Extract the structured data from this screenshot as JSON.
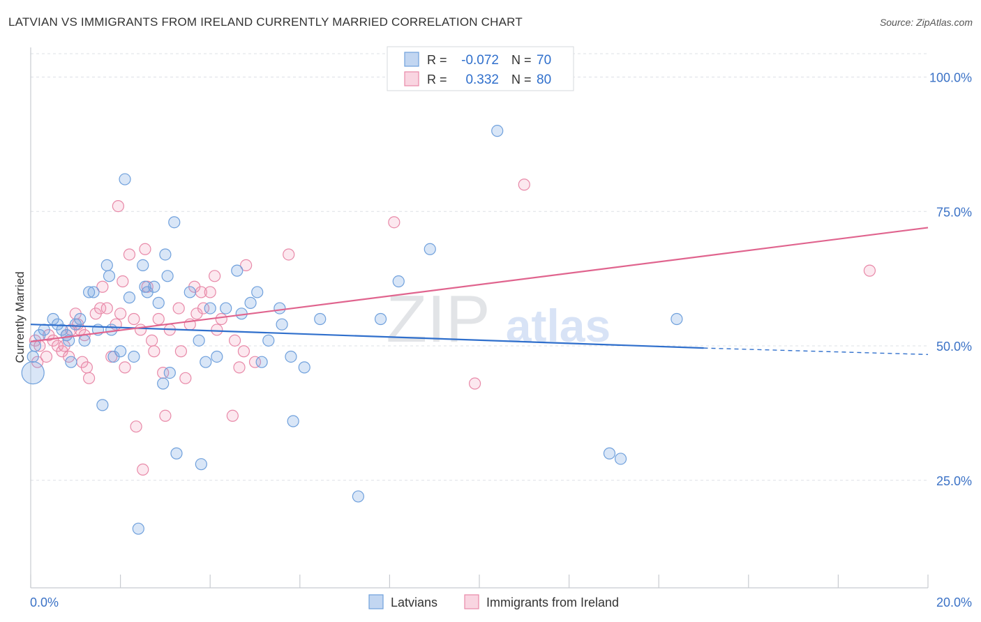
{
  "title": "LATVIAN VS IMMIGRANTS FROM IRELAND CURRENTLY MARRIED CORRELATION CHART",
  "source": "Source: ZipAtlas.com",
  "watermark": {
    "zip": "ZIP",
    "atlas": "atlas"
  },
  "colors": {
    "blue": "#6fa0dc",
    "blue_fill": "rgba(120,165,225,0.28)",
    "blue_line": "#2f6fcc",
    "pink": "#e889a8",
    "pink_fill": "rgba(240,150,180,0.22)",
    "pink_line": "#e0648e",
    "axis_text": "#3b72c6",
    "grid": "#dde0e6"
  },
  "stats": {
    "r_label": "R =",
    "n_label": "N =",
    "series": [
      {
        "r": "-0.072",
        "n": "70"
      },
      {
        "r": "0.332",
        "n": "80"
      }
    ]
  },
  "chart_data": {
    "type": "scatter",
    "ylabel": "Currently Married",
    "xlim": [
      0,
      20
    ],
    "ylim": [
      5,
      105
    ],
    "x_ticks": [
      "0.0%",
      "20.0%"
    ],
    "y_ticks": [
      {
        "v": 100,
        "label": "100.0%"
      },
      {
        "v": 75,
        "label": "75.0%"
      },
      {
        "v": 50,
        "label": "50.0%"
      },
      {
        "v": 25,
        "label": "25.0%"
      }
    ],
    "legend_position": "bottom",
    "series": [
      {
        "name": "Latvians",
        "trend": {
          "x0": 0,
          "y0": 54.0,
          "x1": 15,
          "y1": 49.6,
          "x_end": 20,
          "y_end": 48.4
        },
        "points": [
          [
            0.05,
            48
          ],
          [
            0.05,
            45
          ],
          [
            0.1,
            50
          ],
          [
            0.2,
            52
          ],
          [
            0.3,
            53
          ],
          [
            0.5,
            55
          ],
          [
            0.6,
            54
          ],
          [
            0.7,
            53
          ],
          [
            0.8,
            52
          ],
          [
            0.85,
            51
          ],
          [
            0.9,
            47
          ],
          [
            1.0,
            54
          ],
          [
            1.1,
            55
          ],
          [
            1.2,
            51
          ],
          [
            1.3,
            60
          ],
          [
            1.4,
            60
          ],
          [
            1.5,
            53
          ],
          [
            1.6,
            39
          ],
          [
            1.7,
            65
          ],
          [
            1.75,
            63
          ],
          [
            1.8,
            53
          ],
          [
            1.85,
            48
          ],
          [
            2.0,
            49
          ],
          [
            2.1,
            81
          ],
          [
            2.2,
            59
          ],
          [
            2.3,
            48
          ],
          [
            2.4,
            16
          ],
          [
            2.5,
            65
          ],
          [
            2.55,
            61
          ],
          [
            2.6,
            60
          ],
          [
            2.75,
            61
          ],
          [
            2.85,
            58
          ],
          [
            2.95,
            43
          ],
          [
            3.0,
            67
          ],
          [
            3.05,
            63
          ],
          [
            3.1,
            45
          ],
          [
            3.2,
            73
          ],
          [
            3.25,
            30
          ],
          [
            3.55,
            60
          ],
          [
            3.75,
            51
          ],
          [
            3.8,
            28
          ],
          [
            3.9,
            47
          ],
          [
            4.0,
            57
          ],
          [
            4.15,
            48
          ],
          [
            4.35,
            57
          ],
          [
            4.6,
            64
          ],
          [
            4.7,
            56
          ],
          [
            4.9,
            58
          ],
          [
            5.05,
            60
          ],
          [
            5.15,
            47
          ],
          [
            5.3,
            51
          ],
          [
            5.55,
            57
          ],
          [
            5.6,
            54
          ],
          [
            5.8,
            48
          ],
          [
            5.85,
            36
          ],
          [
            6.1,
            46
          ],
          [
            6.45,
            55
          ],
          [
            7.3,
            22
          ],
          [
            7.8,
            55
          ],
          [
            8.2,
            62
          ],
          [
            8.9,
            68
          ],
          [
            10.4,
            90
          ],
          [
            12.9,
            30
          ],
          [
            13.15,
            29
          ],
          [
            14.4,
            55
          ]
        ]
      },
      {
        "name": "Immigrants from Ireland",
        "trend": {
          "x0": 0,
          "y0": 50.8,
          "x1": 20,
          "y1": 72.0
        },
        "points": [
          [
            0.1,
            51
          ],
          [
            0.15,
            47
          ],
          [
            0.2,
            50
          ],
          [
            0.35,
            48
          ],
          [
            0.4,
            52
          ],
          [
            0.5,
            51
          ],
          [
            0.6,
            50
          ],
          [
            0.7,
            49
          ],
          [
            0.75,
            50
          ],
          [
            0.8,
            52
          ],
          [
            0.85,
            48
          ],
          [
            0.9,
            53
          ],
          [
            1.0,
            56
          ],
          [
            1.05,
            54
          ],
          [
            1.1,
            53
          ],
          [
            1.15,
            47
          ],
          [
            1.2,
            52
          ],
          [
            1.25,
            46
          ],
          [
            1.3,
            44
          ],
          [
            1.45,
            56
          ],
          [
            1.55,
            57
          ],
          [
            1.6,
            61
          ],
          [
            1.7,
            57
          ],
          [
            1.8,
            48
          ],
          [
            1.9,
            54
          ],
          [
            1.95,
            76
          ],
          [
            2.0,
            56
          ],
          [
            2.05,
            62
          ],
          [
            2.1,
            46
          ],
          [
            2.2,
            67
          ],
          [
            2.3,
            55
          ],
          [
            2.35,
            35
          ],
          [
            2.45,
            53
          ],
          [
            2.5,
            27
          ],
          [
            2.55,
            68
          ],
          [
            2.6,
            61
          ],
          [
            2.7,
            51
          ],
          [
            2.75,
            49
          ],
          [
            2.85,
            55
          ],
          [
            2.95,
            45
          ],
          [
            3.0,
            37
          ],
          [
            3.1,
            53
          ],
          [
            3.3,
            57
          ],
          [
            3.35,
            49
          ],
          [
            3.45,
            44
          ],
          [
            3.55,
            54
          ],
          [
            3.65,
            61
          ],
          [
            3.7,
            56
          ],
          [
            3.8,
            60
          ],
          [
            3.85,
            57
          ],
          [
            4.0,
            60
          ],
          [
            4.1,
            63
          ],
          [
            4.15,
            53
          ],
          [
            4.25,
            55
          ],
          [
            4.5,
            37
          ],
          [
            4.55,
            51
          ],
          [
            4.65,
            46
          ],
          [
            4.75,
            49
          ],
          [
            4.8,
            65
          ],
          [
            5.0,
            47
          ],
          [
            5.75,
            67
          ],
          [
            8.1,
            73
          ],
          [
            9.9,
            43
          ],
          [
            11.0,
            80
          ],
          [
            18.7,
            64
          ]
        ]
      }
    ]
  }
}
